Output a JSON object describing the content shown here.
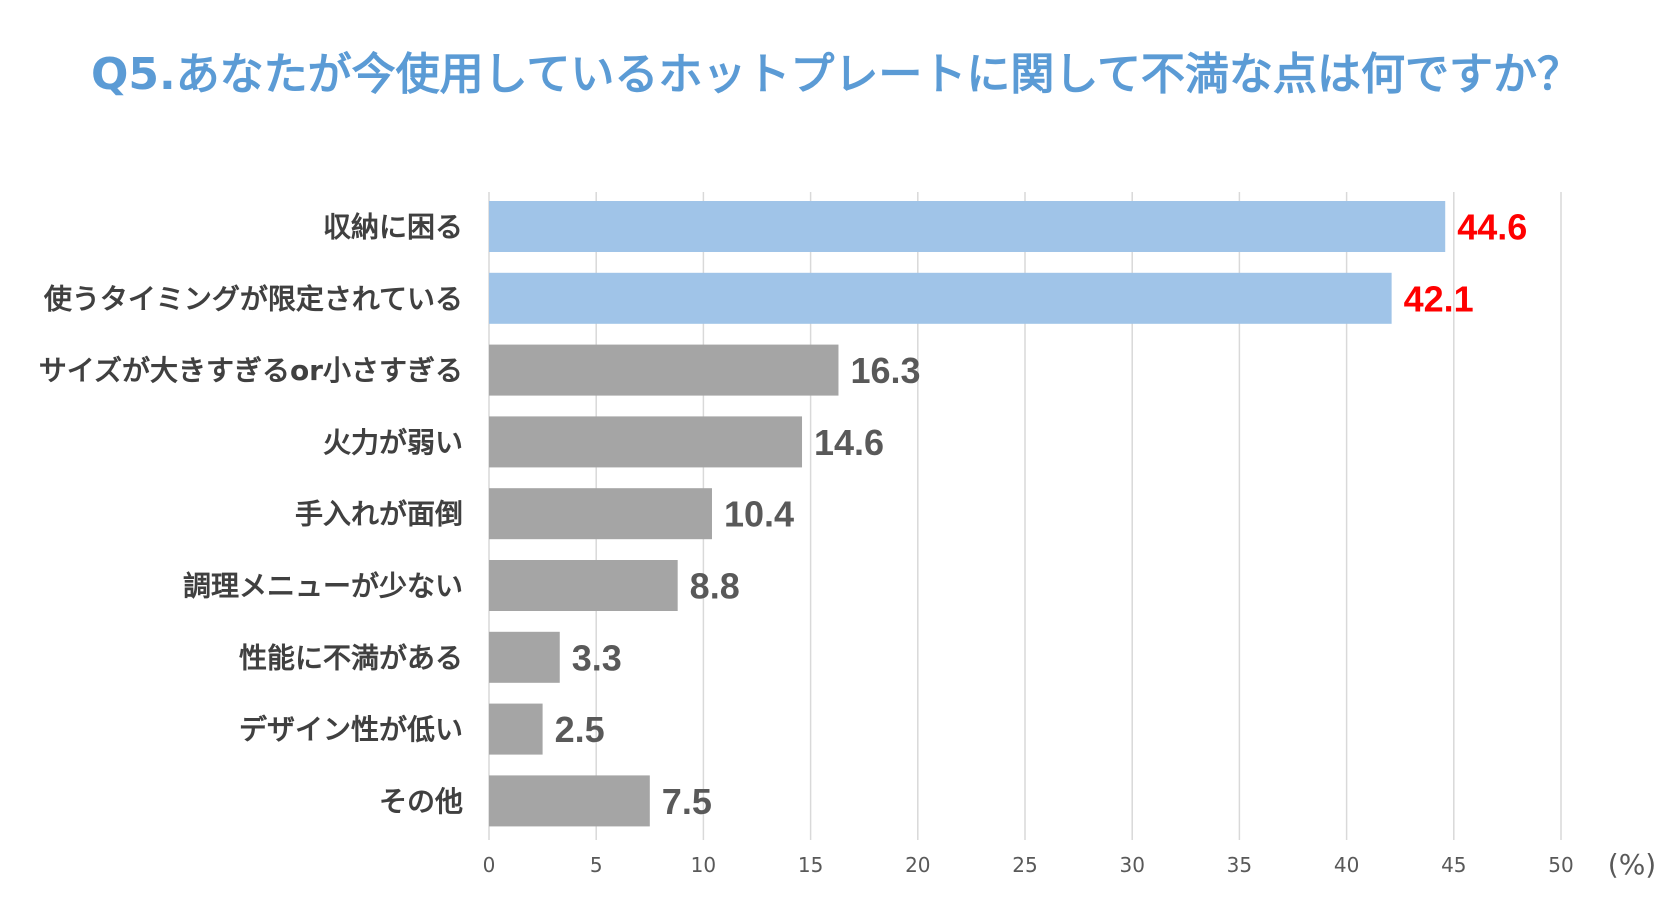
{
  "chart_data": {
    "type": "bar",
    "orientation": "horizontal",
    "title": "Q5.あなたが今使用しているホットプレートに関して不満な点は何ですか？",
    "categories": [
      "収納に困る",
      "使うタイミングが限定されている",
      "サイズが大きすぎるor小さすぎる",
      "火力が弱い",
      "手入れが面倒",
      "調理メニューが少ない",
      "性能に不満がある",
      "デザイン性が低い",
      "その他"
    ],
    "values": [
      44.6,
      42.1,
      16.3,
      14.6,
      10.4,
      8.8,
      3.3,
      2.5,
      7.5
    ],
    "value_labels": [
      "44.6",
      "42.1",
      "16.3",
      "14.6",
      "10.4",
      "8.8",
      "3.3",
      "2.5",
      "7.5"
    ],
    "highlighted": [
      true,
      true,
      false,
      false,
      false,
      false,
      false,
      false,
      false
    ],
    "xlim": [
      0,
      50
    ],
    "xticks": [
      "0",
      "5",
      "10",
      "15",
      "20",
      "25",
      "30",
      "35",
      "40",
      "45",
      "50"
    ],
    "unit_label": "(%)",
    "grid": true,
    "colors": {
      "title": "#5b9bd5",
      "highlight_bar": "#a0c4e8",
      "normal_bar": "#a5a5a5",
      "highlight_label": "#ff0000",
      "normal_label": "#595959",
      "category_label": "#404040",
      "grid": "#d9d9d9",
      "tick": "#595959"
    }
  }
}
